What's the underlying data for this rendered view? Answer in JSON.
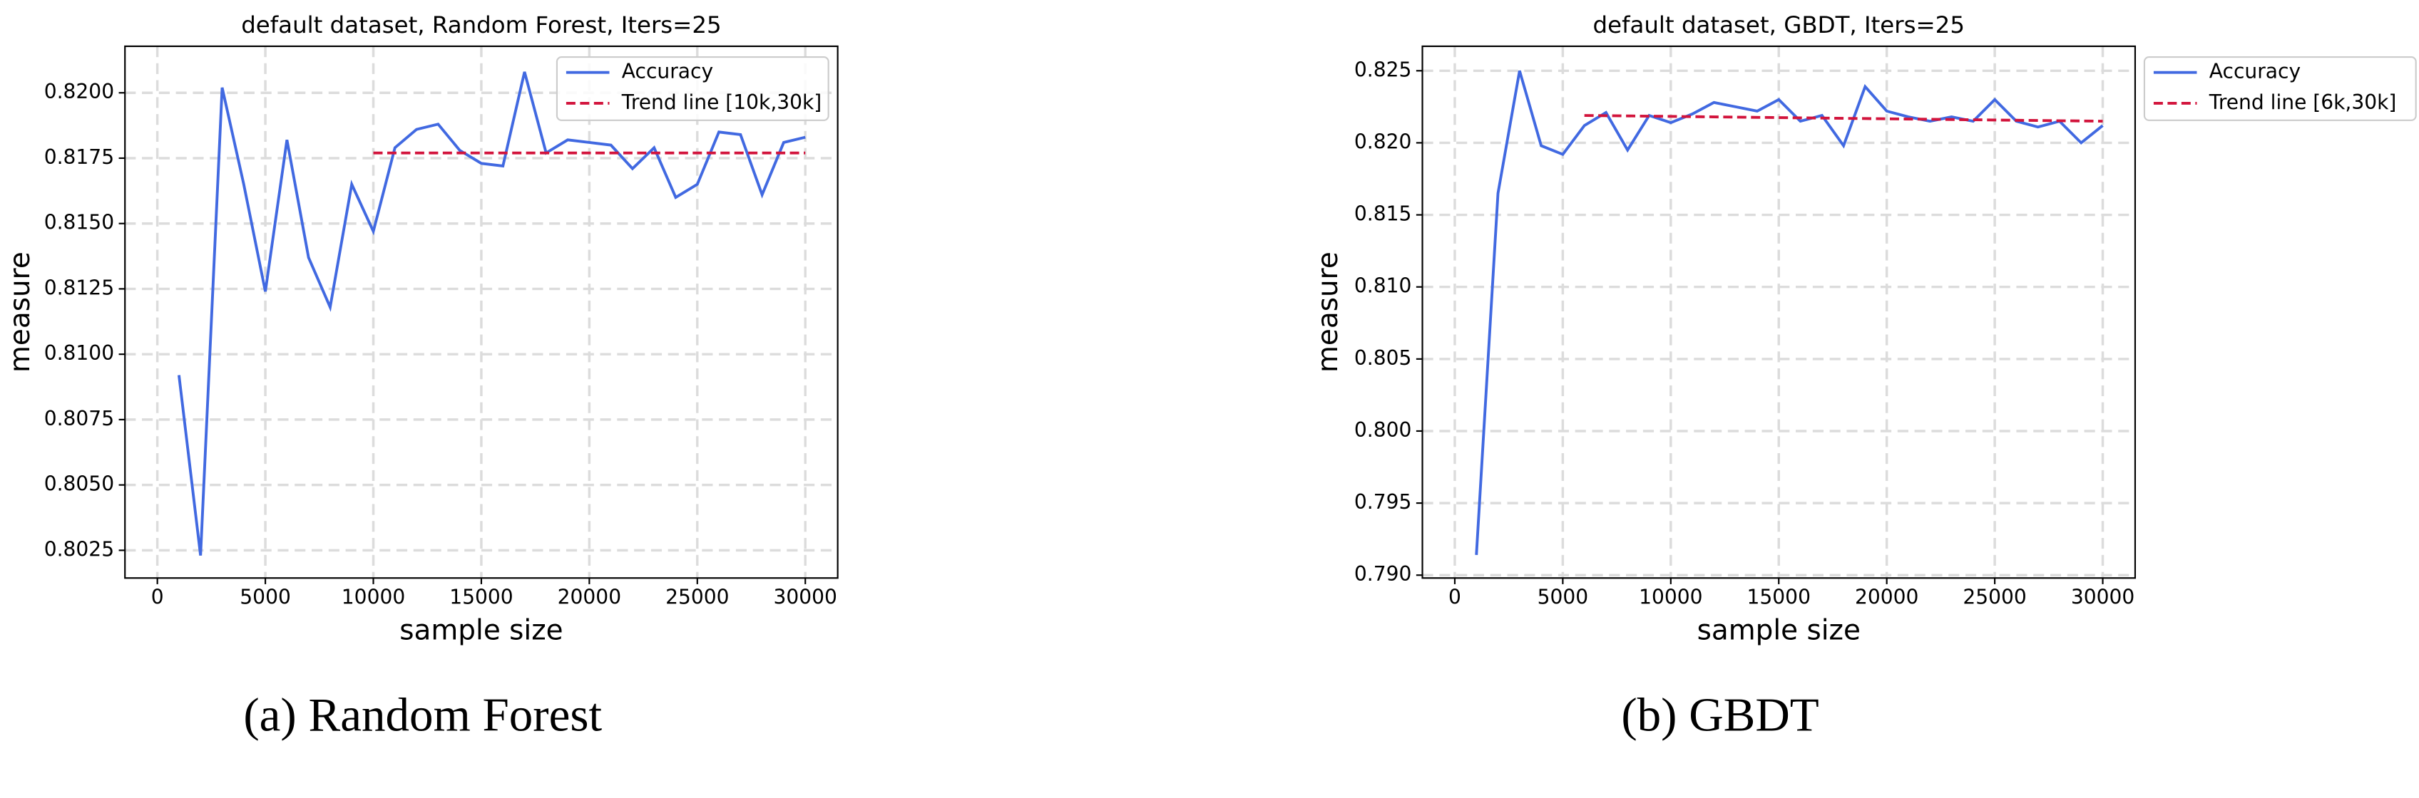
{
  "chart_data": [
    {
      "type": "line",
      "title": "default dataset, Random Forest, Iters=25",
      "xlabel": "sample size",
      "ylabel": "measure",
      "caption": "(a) Random Forest",
      "x": [
        1000,
        2000,
        3000,
        4000,
        5000,
        6000,
        7000,
        8000,
        9000,
        10000,
        11000,
        12000,
        13000,
        14000,
        15000,
        16000,
        17000,
        18000,
        19000,
        20000,
        21000,
        22000,
        23000,
        24000,
        25000,
        26000,
        27000,
        28000,
        29000,
        30000
      ],
      "series": [
        {
          "name": "Accuracy",
          "color": "#4169e1",
          "values": [
            0.8092,
            0.8023,
            0.8202,
            0.8165,
            0.8124,
            0.8182,
            0.8137,
            0.8118,
            0.8165,
            0.8147,
            0.8179,
            0.8186,
            0.8188,
            0.8178,
            0.8173,
            0.8172,
            0.8208,
            0.8177,
            0.8182,
            0.8181,
            0.818,
            0.8171,
            0.8179,
            0.816,
            0.8165,
            0.8185,
            0.8184,
            0.8161,
            0.8181,
            0.8183
          ]
        },
        {
          "name": "Trend line [10k,30k]",
          "color": "#d2143c",
          "dashed": true,
          "x": [
            10000,
            30000
          ],
          "values": [
            0.8177,
            0.8177
          ]
        }
      ],
      "xlim": [
        -1500,
        31500
      ],
      "ylim": [
        0.80144,
        0.82178
      ],
      "xticks": [
        0,
        5000,
        10000,
        15000,
        20000,
        25000,
        30000
      ],
      "yticks": [
        0.8025,
        {
          "value": 0.805,
          "label": "0.8050"
        },
        0.8075,
        {
          "value": 0.81,
          "label": "0.8100"
        },
        {
          "value": 0.8125,
          "label": "0.8125"
        },
        {
          "value": 0.815,
          "label": "0.8150"
        },
        {
          "value": 0.8175,
          "label": "0.8175"
        },
        {
          "value": 0.82,
          "label": "0.8200"
        }
      ],
      "grid": true,
      "legend": "upper right"
    },
    {
      "type": "line",
      "title": "default dataset, GBDT, Iters=25",
      "xlabel": "sample size",
      "ylabel": "measure",
      "caption": "(b) GBDT",
      "x": [
        1000,
        2000,
        3000,
        4000,
        5000,
        6000,
        7000,
        8000,
        9000,
        10000,
        11000,
        12000,
        13000,
        14000,
        15000,
        16000,
        17000,
        18000,
        19000,
        20000,
        21000,
        22000,
        23000,
        24000,
        25000,
        26000,
        27000,
        28000,
        29000,
        30000
      ],
      "series": [
        {
          "name": "Accuracy",
          "color": "#4169e1",
          "values": [
            0.7914,
            0.8165,
            0.825,
            0.8198,
            0.8192,
            0.8212,
            0.8221,
            0.8195,
            0.8219,
            0.8214,
            0.822,
            0.8228,
            0.8225,
            0.8222,
            0.823,
            0.8215,
            0.8219,
            0.8198,
            0.8239,
            0.8222,
            0.8218,
            0.8215,
            0.8218,
            0.8215,
            0.823,
            0.8215,
            0.8211,
            0.8215,
            0.82,
            0.8212
          ]
        },
        {
          "name": "Trend line [6k,30k]",
          "color": "#d2143c",
          "dashed": true,
          "x": [
            6000,
            30000
          ],
          "values": [
            0.8219,
            0.8215
          ]
        }
      ],
      "xlim": [
        -1500,
        31500
      ],
      "ylim": [
        0.7898,
        0.8267
      ],
      "xticks": [
        0,
        5000,
        10000,
        15000,
        20000,
        25000,
        30000
      ],
      "yticks": [
        {
          "value": 0.79,
          "label": "0.790"
        },
        0.795,
        {
          "value": 0.8,
          "label": "0.800"
        },
        0.805,
        {
          "value": 0.81,
          "label": "0.810"
        },
        0.815,
        {
          "value": 0.82,
          "label": "0.820"
        },
        0.825
      ],
      "grid": true,
      "legend": "outside right"
    }
  ]
}
